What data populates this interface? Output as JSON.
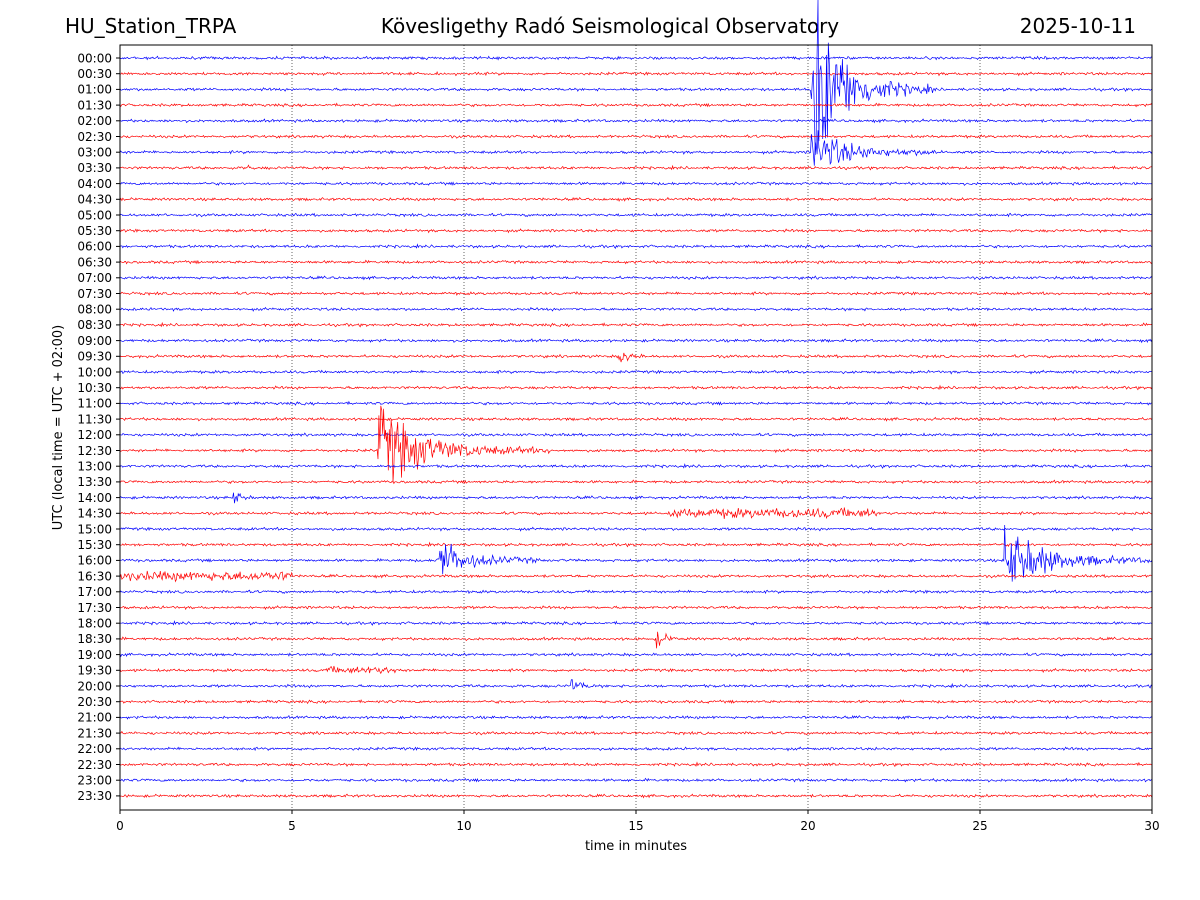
{
  "header": {
    "station": "HU_Station_TRPA",
    "title": "Kövesligethy Radó Seismological Observatory",
    "date": "2025-10-11"
  },
  "chart_data": {
    "type": "line",
    "title": "Kövesligethy Radó Seismological Observatory",
    "xlabel": "time in minutes",
    "ylabel": "UTC (local time = UTC + 02:00)",
    "xlim": [
      0,
      30
    ],
    "xticks": [
      0,
      5,
      10,
      15,
      20,
      25,
      30
    ],
    "grid": "vertical dotted lines at every 5 minutes",
    "row_labels": [
      "00:00",
      "00:30",
      "01:00",
      "01:30",
      "02:00",
      "02:30",
      "03:00",
      "03:30",
      "04:00",
      "04:30",
      "05:00",
      "05:30",
      "06:00",
      "06:30",
      "07:00",
      "07:30",
      "08:00",
      "08:30",
      "09:00",
      "09:30",
      "10:00",
      "10:30",
      "11:00",
      "11:30",
      "12:00",
      "12:30",
      "13:00",
      "13:30",
      "14:00",
      "14:30",
      "15:00",
      "15:30",
      "16:00",
      "16:30",
      "17:00",
      "17:30",
      "18:00",
      "18:30",
      "19:00",
      "19:30",
      "20:00",
      "20:30",
      "21:00",
      "21:30",
      "22:00",
      "22:30",
      "23:00",
      "23:30"
    ],
    "row_colors": [
      "#0000ff",
      "#ff0000"
    ],
    "events": [
      {
        "row": 2,
        "start": 20.1,
        "type": "quake",
        "amp": 90,
        "dur": 3.6
      },
      {
        "row": 6,
        "start": 20.1,
        "type": "quake",
        "amp": 22,
        "dur": 3.8
      },
      {
        "row": 7,
        "start": 3.7,
        "type": "spike",
        "amp": 6,
        "dur": 0.15
      },
      {
        "row": 19,
        "start": 14.5,
        "type": "small",
        "amp": 8,
        "dur": 0.8
      },
      {
        "row": 21,
        "start": 10.6,
        "type": "spike",
        "amp": 4,
        "dur": 0.2
      },
      {
        "row": 25,
        "start": 7.5,
        "type": "quake",
        "amp": 38,
        "dur": 5.0
      },
      {
        "row": 28,
        "start": 3.3,
        "type": "small",
        "amp": 7,
        "dur": 0.6
      },
      {
        "row": 29,
        "start": 16.0,
        "type": "noise",
        "amp": 4,
        "dur": 6.0
      },
      {
        "row": 32,
        "start": 9.2,
        "type": "quake",
        "amp": 20,
        "dur": 3.0
      },
      {
        "row": 32,
        "start": 25.7,
        "type": "quake",
        "amp": 32,
        "dur": 4.3
      },
      {
        "row": 33,
        "start": 0.0,
        "type": "noise",
        "amp": 4,
        "dur": 5.0
      },
      {
        "row": 37,
        "start": 15.6,
        "type": "small",
        "amp": 8,
        "dur": 0.7
      },
      {
        "row": 39,
        "start": 6.0,
        "type": "noise",
        "amp": 3,
        "dur": 2.0
      },
      {
        "row": 39,
        "start": 7.2,
        "type": "spike",
        "amp": 5,
        "dur": 0.2
      },
      {
        "row": 40,
        "start": 13.1,
        "type": "small",
        "amp": 7,
        "dur": 0.8
      },
      {
        "row": 40,
        "start": 10.7,
        "type": "spike",
        "amp": 3,
        "dur": 0.1
      }
    ]
  }
}
